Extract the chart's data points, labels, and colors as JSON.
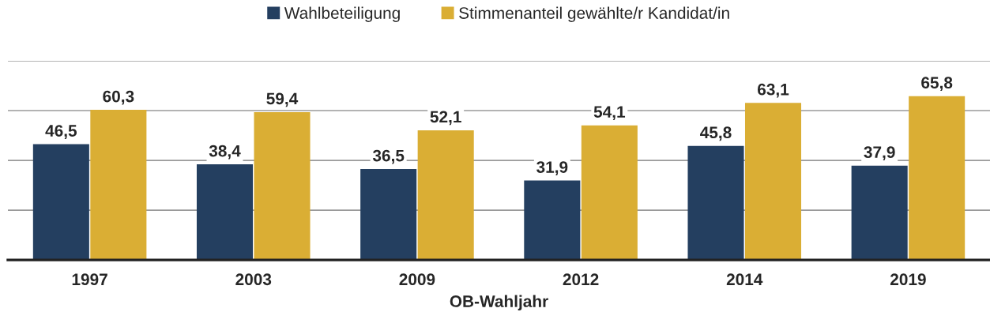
{
  "chart_data": {
    "type": "bar",
    "xlabel": "OB-Wahljahr",
    "categories": [
      "1997",
      "2003",
      "2009",
      "2012",
      "2014",
      "2019"
    ],
    "series": [
      {
        "name": "Wahlbeteiligung",
        "color": "#243f60",
        "values": [
          46.5,
          38.4,
          36.5,
          31.9,
          45.8,
          37.9
        ],
        "value_labels": [
          "46,5",
          "38,4",
          "36,5",
          "31,9",
          "45,8",
          "37,9"
        ]
      },
      {
        "name": "Stimmenanteil gewählte/r Kandidat/in",
        "color": "#daae34",
        "values": [
          60.3,
          59.4,
          52.1,
          54.1,
          63.1,
          65.8
        ],
        "value_labels": [
          "60,3",
          "59,4",
          "52,1",
          "54,1",
          "63,1",
          "65,8"
        ]
      }
    ],
    "ylim": [
      0,
      80
    ],
    "yticks": [
      {
        "value": 0,
        "label": null
      },
      {
        "value": 20,
        "label": null
      },
      {
        "value": 40,
        "label": null
      },
      {
        "value": 60,
        "label": null
      },
      {
        "value": 80,
        "label": null
      }
    ],
    "grid": "y",
    "legend": "top",
    "tick_labels": "x"
  }
}
